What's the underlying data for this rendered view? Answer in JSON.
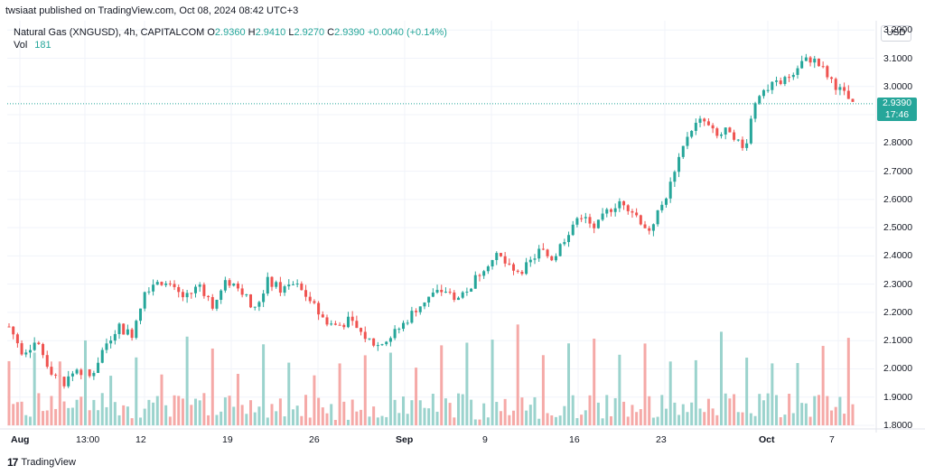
{
  "header": {
    "publish_line": "twsiaat published on TradingView.com, Oct 08, 2024 08:42 UTC+3"
  },
  "legend": {
    "symbol": "Natural Gas (XNGUSD), 4h, CAPITALCOM",
    "o_label": "O",
    "o_value": "2.9360",
    "h_label": "H",
    "h_value": "2.9410",
    "l_label": "L",
    "l_value": "2.9270",
    "c_label": "C",
    "c_value": "2.9390",
    "change": "+0.0040 (+0.14%)",
    "vol_label": "Vol",
    "vol_value": "181"
  },
  "currency_button": "USD",
  "last_price": {
    "price": "2.9390",
    "countdown": "17:46"
  },
  "footer": {
    "logo_text": "17",
    "brand": "TradingView"
  },
  "colors": {
    "up": "#26a69a",
    "down": "#ef5350",
    "vol_up": "#9bd3cd",
    "vol_down": "#f5a9a7",
    "grid": "#f0f3fa"
  },
  "chart_data": {
    "type": "candlestick",
    "y_ticks": [
      "3.2000",
      "3.1000",
      "3.0000",
      "2.9000",
      "2.8000",
      "2.7000",
      "2.6000",
      "2.5000",
      "2.4000",
      "2.3000",
      "2.2000",
      "2.1000",
      "2.0000",
      "1.9000",
      "1.8000"
    ],
    "x_ticks": [
      "Aug",
      "13:00",
      "12",
      "19",
      "26",
      "Sep",
      "9",
      "16",
      "23",
      "Oct",
      "7"
    ],
    "ylim": [
      1.8,
      3.22
    ],
    "close_path": [
      2.15,
      2.06,
      2.1,
      2.0,
      1.95,
      2.0,
      1.97,
      2.08,
      2.15,
      2.12,
      2.28,
      2.32,
      2.28,
      2.25,
      2.3,
      2.22,
      2.31,
      2.29,
      2.2,
      2.31,
      2.28,
      2.3,
      2.25,
      2.18,
      2.15,
      2.17,
      2.12,
      2.08,
      2.11,
      2.16,
      2.22,
      2.26,
      2.28,
      2.25,
      2.3,
      2.37,
      2.4,
      2.34,
      2.36,
      2.42,
      2.39,
      2.48,
      2.55,
      2.49,
      2.56,
      2.6,
      2.55,
      2.49,
      2.58,
      2.7,
      2.85,
      2.88,
      2.82,
      2.85,
      2.77,
      2.98,
      3.0,
      3.02,
      3.08,
      3.1,
      3.05,
      2.99,
      2.94
    ]
  }
}
